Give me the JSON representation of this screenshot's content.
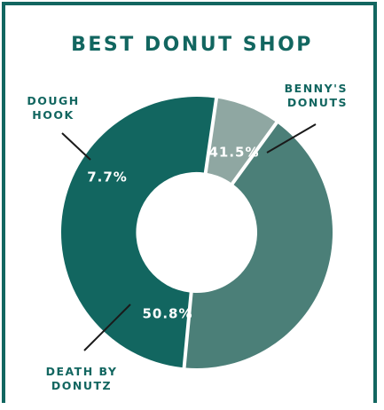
{
  "colors": {
    "frame": "#126660",
    "title": "#126660",
    "label": "#126660",
    "value_text": "#ffffff",
    "leader": "#1a1a1a",
    "slice_bennys": "#4b7f78",
    "slice_death": "#126660",
    "slice_dough": "#8fa7a2"
  },
  "chart_data": {
    "type": "pie",
    "title": "BEST DONUT SHOP",
    "donut": true,
    "slices": [
      {
        "name": "BENNY'S DONUTS",
        "label_lines": [
          "BENNY'S",
          "DONUTS"
        ],
        "value": 41.5,
        "display": "41.5%",
        "color": "#4b7f78"
      },
      {
        "name": "DEATH BY DONUTZ",
        "label_lines": [
          "DEATH BY",
          "DONUTZ"
        ],
        "value": 50.8,
        "display": "50.8%",
        "color": "#126660"
      },
      {
        "name": "DOUGH HOOK",
        "label_lines": [
          "DOUGH",
          "HOOK"
        ],
        "value": 7.7,
        "display": "7.7%",
        "color": "#8fa7a2"
      }
    ]
  }
}
